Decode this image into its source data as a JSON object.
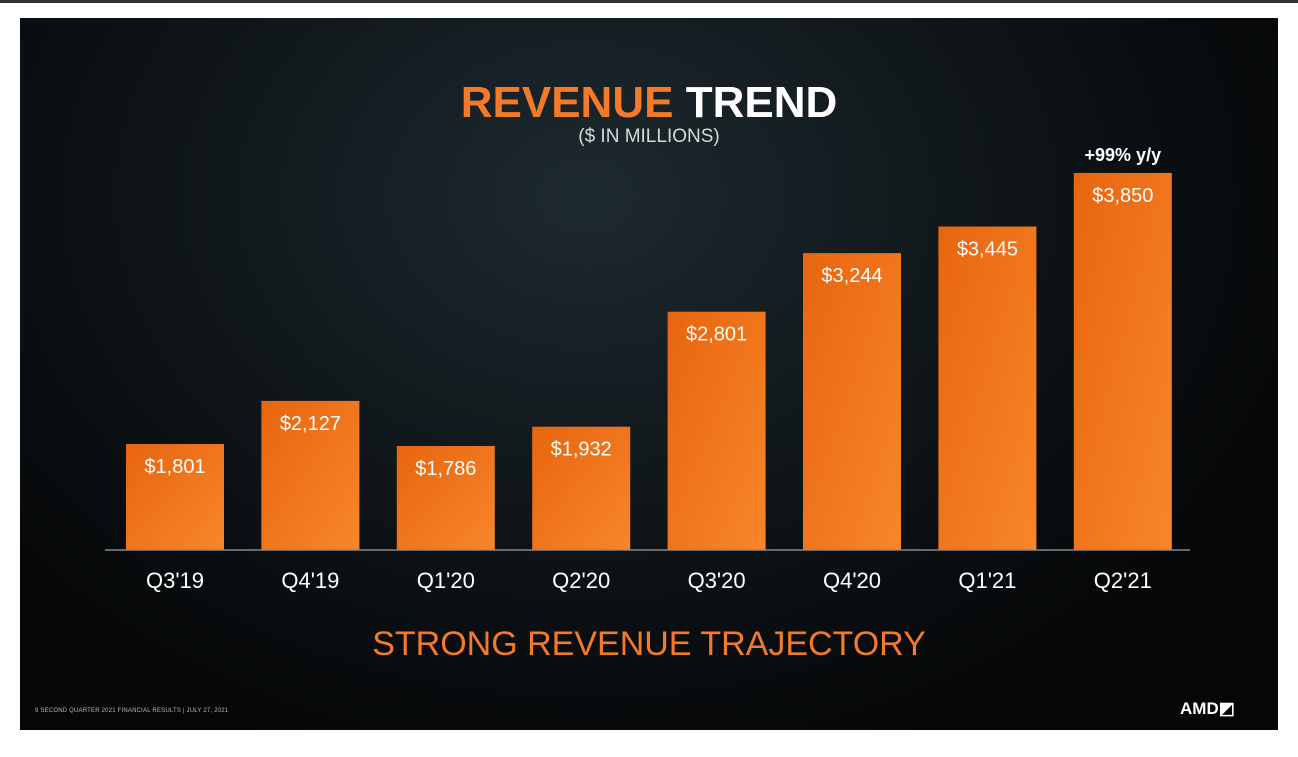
{
  "chart_data": {
    "type": "bar",
    "title_part1": "REVENUE",
    "title_part2": "TREND",
    "subtitle": "($ IN MILLIONS)",
    "categories": [
      "Q3'19",
      "Q4'19",
      "Q1'20",
      "Q2'20",
      "Q3'20",
      "Q4'20",
      "Q1'21",
      "Q2'21"
    ],
    "values": [
      1801,
      2127,
      1786,
      1932,
      2801,
      3244,
      3445,
      3850
    ],
    "value_labels": [
      "$1,801",
      "$2,127",
      "$1,786",
      "$1,932",
      "$2,801",
      "$3,244",
      "$3,445",
      "$3,850"
    ],
    "annotation": "+99% y/y",
    "ylim": [
      1000,
      4000
    ],
    "grid": false,
    "bar_color": "#f07a1e"
  },
  "tagline": "STRONG REVENUE TRAJECTORY",
  "footer": "9   SECOND QUARTER 2021 FINANCIAL RESULTS  |  JULY 27, 2021",
  "logo": "AMD"
}
